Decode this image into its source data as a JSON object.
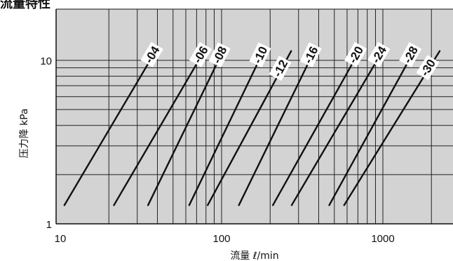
{
  "chart_data": {
    "type": "line",
    "title": "流量特性",
    "xlabel": "流量 ℓ/min",
    "ylabel": "压力降 kPa",
    "xscale": "log",
    "yscale": "log",
    "xlim": [
      8,
      2600
    ],
    "ylim": [
      1,
      20
    ],
    "grid": true,
    "x_ticks": [
      10,
      100,
      1000
    ],
    "y_ticks": [
      1,
      10
    ],
    "series": [
      {
        "name": "-04",
        "x": [
          10.6,
          39
        ],
        "y": [
          1.3,
          11.4
        ]
      },
      {
        "name": "-06",
        "x": [
          21.5,
          78
        ],
        "y": [
          1.3,
          11.4
        ]
      },
      {
        "name": "-08",
        "x": [
          35,
          102
        ],
        "y": [
          1.3,
          11.4
        ]
      },
      {
        "name": "-10",
        "x": [
          63,
          182
        ],
        "y": [
          1.3,
          11.4
        ]
      },
      {
        "name": "-12",
        "x": [
          82,
          270
        ],
        "y": [
          1.3,
          11.4
        ]
      },
      {
        "name": "-16",
        "x": [
          128,
          375
        ],
        "y": [
          1.3,
          11.4
        ]
      },
      {
        "name": "-20",
        "x": [
          208,
          715
        ],
        "y": [
          1.3,
          11.4
        ]
      },
      {
        "name": "-24",
        "x": [
          272,
          995
        ],
        "y": [
          1.3,
          11.4
        ]
      },
      {
        "name": "-28",
        "x": [
          465,
          1560
        ],
        "y": [
          1.3,
          11.4
        ]
      },
      {
        "name": "-30",
        "x": [
          575,
          2250
        ],
        "y": [
          1.3,
          11.4
        ]
      }
    ]
  }
}
